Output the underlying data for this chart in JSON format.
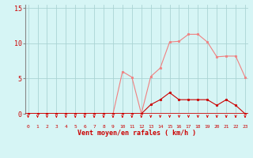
{
  "x": [
    0,
    1,
    2,
    3,
    4,
    5,
    6,
    7,
    8,
    9,
    10,
    11,
    12,
    13,
    14,
    15,
    16,
    17,
    18,
    19,
    20,
    21,
    22,
    23
  ],
  "rafales": [
    0,
    0,
    0,
    0,
    0,
    0,
    0,
    0,
    0,
    0,
    6,
    5.2,
    0,
    5.3,
    6.5,
    10.2,
    10.3,
    11.3,
    11.3,
    10.2,
    8.1,
    8.2,
    8.2,
    5.2
  ],
  "moyen": [
    0,
    0,
    0,
    0,
    0,
    0,
    0,
    0,
    0,
    0,
    0,
    0,
    0,
    1.3,
    2,
    3,
    2,
    2,
    2,
    2,
    1.2,
    2,
    1.2,
    0
  ],
  "line_color_rafales": "#f08080",
  "line_color_moyen": "#cc0000",
  "bg_color": "#d6f5f5",
  "grid_color": "#aad4d4",
  "ylabel_ticks": [
    0,
    5,
    10,
    15
  ],
  "xlim": [
    -0.3,
    23.3
  ],
  "ylim": [
    0,
    15.5
  ],
  "xlabel": "Vent moyen/en rafales ( km/h )",
  "arrow_color": "#dd0000",
  "spine_bottom_color": "#cc0000"
}
